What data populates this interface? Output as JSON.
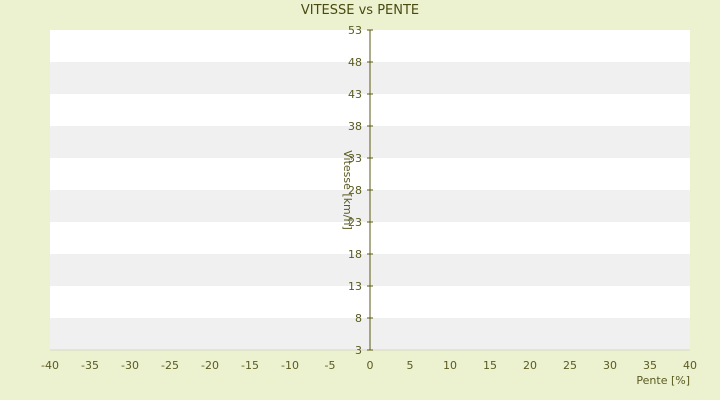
{
  "chart_data": {
    "type": "scatter",
    "title": "VITESSE vs PENTE",
    "xlabel": "Pente [%]",
    "ylabel": "Vitesse [km/h]",
    "xlim": [
      -40,
      40
    ],
    "ylim": [
      3,
      53
    ],
    "x_ticks": [
      "-40",
      "-35",
      "-30",
      "-25",
      "-20",
      "-15",
      "-10",
      "-5",
      "0",
      "5",
      "10",
      "15",
      "20",
      "25",
      "30",
      "35",
      "40"
    ],
    "y_ticks": [
      "3",
      "8",
      "13",
      "18",
      "23",
      "28",
      "33",
      "38",
      "43",
      "48",
      "53"
    ],
    "grid": "horizontal bands",
    "legend": "none",
    "colors": {
      "series_1": "#3b8fd6",
      "series_2": "#a8a010",
      "band": "#f0f0f0",
      "axis": "#5a5a10"
    },
    "series": [
      {
        "color": "#3b8fd6",
        "points": []
      },
      {
        "color": "#a8a010",
        "points": []
      }
    ]
  }
}
